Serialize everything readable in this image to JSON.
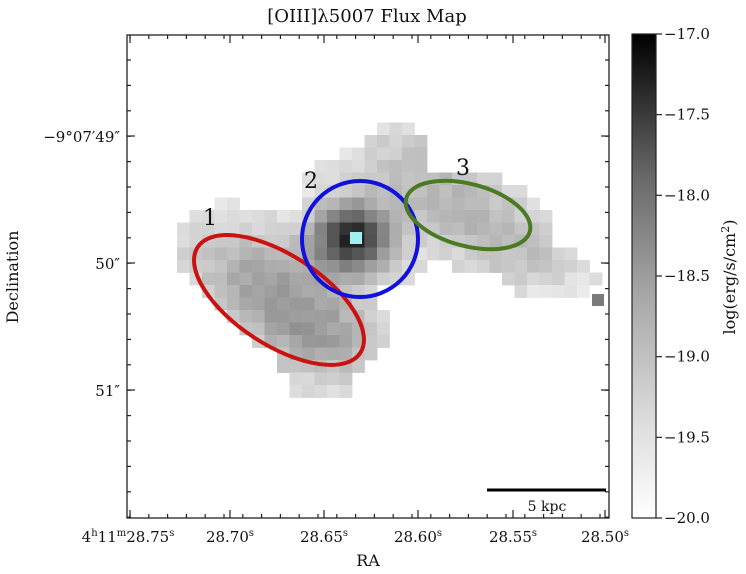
{
  "chart_data": {
    "type": "heatmap",
    "title": "[OIII]λ5007 Flux Map",
    "xlabel": "RA",
    "ylabel": "Declination",
    "x_ticks": [
      {
        "value": "28.75",
        "pre": "4",
        "sup1": "h",
        "mid": "11",
        "sup2": "m",
        "sup3": "s"
      },
      {
        "value": "28.70",
        "sup3": "s"
      },
      {
        "value": "28.65",
        "sup3": "s"
      },
      {
        "value": "28.60",
        "sup3": "s"
      },
      {
        "value": "28.55",
        "sup3": "s"
      },
      {
        "value": "28.50",
        "sup3": "s"
      }
    ],
    "y_ticks": [
      "−9°07′49″",
      "50″",
      "51″"
    ],
    "colorbar": {
      "label": "log(erg/s/cm",
      "label_sup": "2",
      "label_tail": ")",
      "ticks": [
        "−17.0",
        "−17.5",
        "−18.0",
        "−18.5",
        "−19.0",
        "−19.5",
        "−20.0"
      ],
      "range": [
        -20.0,
        -17.0
      ],
      "colormap": "gray_r"
    },
    "regions": [
      {
        "label": "1",
        "color": "#cc1111"
      },
      {
        "label": "2",
        "color": "#1111dd"
      },
      {
        "label": "3",
        "color": "#4a7a22"
      }
    ],
    "peak_marker_color": "#9ff0f0",
    "scale_bar": {
      "label": "5 kpc"
    }
  }
}
